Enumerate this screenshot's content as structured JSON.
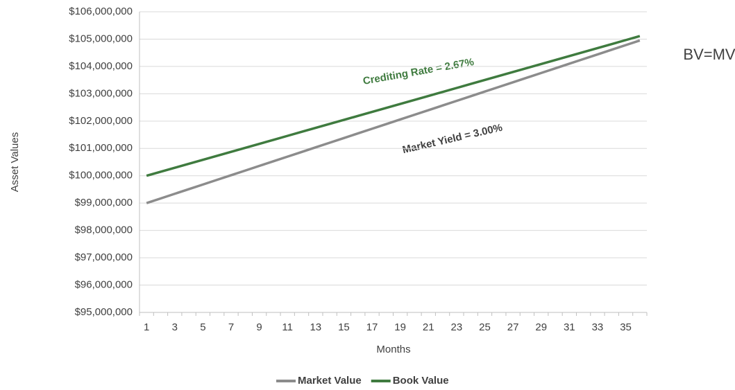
{
  "chart_data": {
    "type": "line",
    "x_label": "Months",
    "y_label": "Asset Values",
    "categories": [
      1,
      null,
      3,
      null,
      5,
      null,
      7,
      null,
      9,
      null,
      11,
      null,
      13,
      null,
      15,
      null,
      17,
      null,
      19,
      null,
      21,
      null,
      23,
      null,
      25,
      null,
      27,
      null,
      29,
      null,
      31,
      null,
      33,
      null,
      35,
      null
    ],
    "series": [
      {
        "name": "Market Value",
        "color": "#8c8c8c",
        "values": [
          99000000,
          99170000,
          99340000,
          99510000,
          99680000,
          99850000,
          100020000,
          100190000,
          100360000,
          100530000,
          100700000,
          100870000,
          101040000,
          101210000,
          101380000,
          101550000,
          101720000,
          101890000,
          102060000,
          102230000,
          102400000,
          102570000,
          102740000,
          102910000,
          103080000,
          103250000,
          103420000,
          103590000,
          103760000,
          103930000,
          104100000,
          104270000,
          104440000,
          104610000,
          104780000,
          104950000
        ]
      },
      {
        "name": "Book Value",
        "color": "#3f7b3f",
        "values": [
          100000000,
          100146000,
          100292000,
          100438000,
          100584000,
          100730000,
          100876000,
          101022000,
          101168000,
          101314000,
          101460000,
          101606000,
          101752000,
          101898000,
          102044000,
          102190000,
          102336000,
          102482000,
          102628000,
          102774000,
          102920000,
          103066000,
          103212000,
          103358000,
          103504000,
          103650000,
          103796000,
          103942000,
          104088000,
          104234000,
          104380000,
          104526000,
          104672000,
          104818000,
          104964000,
          105110000
        ]
      }
    ],
    "ylim": [
      95000000,
      106000000
    ],
    "yticks": [
      {
        "value": 95000000,
        "label": "$95,000,000"
      },
      {
        "value": 96000000,
        "label": "$96,000,000"
      },
      {
        "value": 97000000,
        "label": "$97,000,000"
      },
      {
        "value": 98000000,
        "label": "$98,000,000"
      },
      {
        "value": 99000000,
        "label": "$99,000,000"
      },
      {
        "value": 100000000,
        "label": "$100,000,000"
      },
      {
        "value": 101000000,
        "label": "$101,000,000"
      },
      {
        "value": 102000000,
        "label": "$102,000,000"
      },
      {
        "value": 103000000,
        "label": "$103,000,000"
      },
      {
        "value": 104000000,
        "label": "$104,000,000"
      },
      {
        "value": 105000000,
        "label": "$105,000,000"
      },
      {
        "value": 106000000,
        "label": "$106,000,000"
      }
    ],
    "grid": true,
    "legend": "bottom",
    "annotations": [
      "Crediting Rate = 2.67%",
      "Market Yield = 3.00%",
      "BV=MV"
    ]
  }
}
